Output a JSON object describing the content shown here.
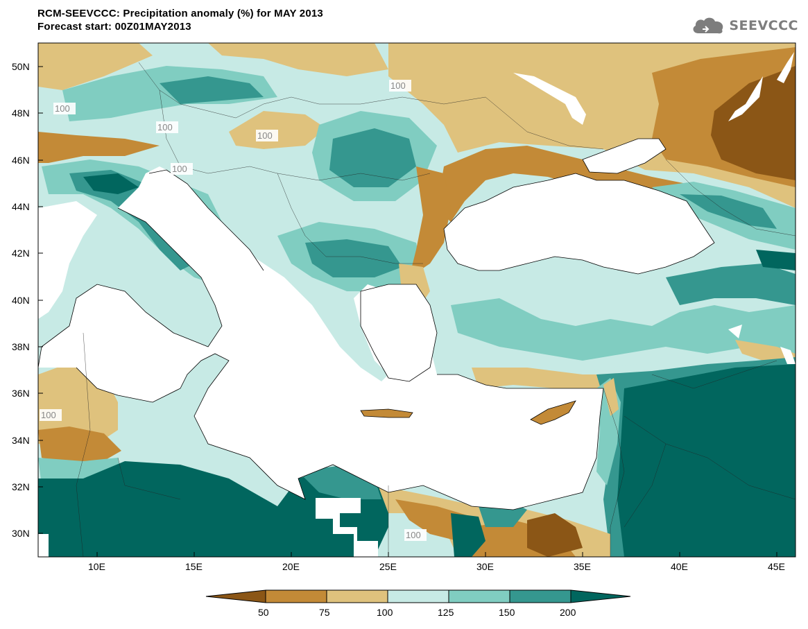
{
  "header": {
    "title_line1": "RCM-SEEVCCC: Precipitation anomaly (%) for MAY 2013",
    "title_line2": "Forecast start: 00Z01MAY2013"
  },
  "logo": {
    "text": "SEEVCCC",
    "icon": "cloud-icon"
  },
  "map": {
    "lat_labels": [
      "50N",
      "48N",
      "46N",
      "44N",
      "42N",
      "40N",
      "38N",
      "36N",
      "34N",
      "32N",
      "30N"
    ],
    "lon_labels": [
      "10E",
      "15E",
      "20E",
      "25E",
      "30E",
      "35E",
      "40E",
      "45E"
    ],
    "contour_labels": [
      "100",
      "100",
      "100",
      "100",
      "100",
      "100",
      "100"
    ]
  },
  "colorbar": {
    "colors": [
      "#8b5616",
      "#c38a37",
      "#dfc27d",
      "#c7eae5",
      "#80cdc1",
      "#35978f",
      "#01665e"
    ],
    "labels": [
      "50",
      "75",
      "100",
      "125",
      "150",
      "200"
    ]
  }
}
